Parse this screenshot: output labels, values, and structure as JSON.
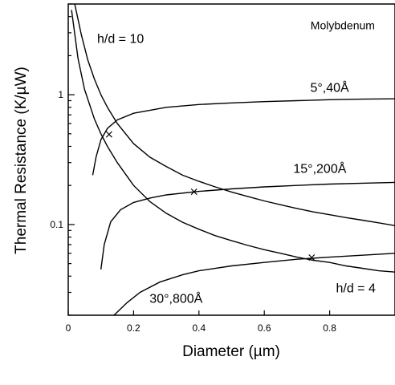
{
  "chart_data": {
    "type": "line",
    "title": "",
    "xlabel": "Diameter (µm)",
    "ylabel": "Thermal Resistance (K/µW)",
    "xlim": [
      0,
      1.0
    ],
    "ylim": [
      0.02,
      5
    ],
    "yscale": "log",
    "grid": false,
    "x_ticks": [
      {
        "value": 0,
        "label": "0"
      },
      {
        "value": 0.2,
        "label": "0.2"
      },
      {
        "value": 0.4,
        "label": "0.4"
      },
      {
        "value": 0.6,
        "label": "0.6"
      },
      {
        "value": 0.8,
        "label": "0.8"
      }
    ],
    "y_ticks": [
      {
        "value": 0.1,
        "label": "0.1"
      },
      {
        "value": 1,
        "label": "1"
      }
    ],
    "annotations": [
      {
        "text": "Molybdenum",
        "x": 0.84,
        "y": 3.2,
        "size": 14
      },
      {
        "text": "h/d = 10",
        "x": 0.16,
        "y": 2.5,
        "size": 16
      },
      {
        "text": "h/d = 4",
        "x": 0.88,
        "y": 0.03,
        "size": 16
      },
      {
        "text": "5°,40Å",
        "x": 0.8,
        "y": 1.05,
        "size": 16
      },
      {
        "text": "15°,200Å",
        "x": 0.77,
        "y": 0.25,
        "size": 16
      },
      {
        "text": "30°,800Å",
        "x": 0.33,
        "y": 0.025,
        "size": 16
      }
    ],
    "series": [
      {
        "x": [
          0.02,
          0.04,
          0.06,
          0.08,
          0.1,
          0.12,
          0.15,
          0.2,
          0.25,
          0.3,
          0.35,
          0.4,
          0.45,
          0.5,
          0.55,
          0.6,
          0.65,
          0.7,
          0.75,
          0.8,
          0.85,
          0.9,
          0.95,
          1.0
        ],
        "values": [
          5.0,
          2.9,
          1.85,
          1.32,
          1.0,
          0.8,
          0.6,
          0.42,
          0.33,
          0.28,
          0.24,
          0.215,
          0.195,
          0.178,
          0.164,
          0.152,
          0.142,
          0.133,
          0.125,
          0.119,
          0.113,
          0.108,
          0.103,
          0.098
        ]
      },
      {
        "x": [
          0.01,
          0.03,
          0.05,
          0.08,
          0.1,
          0.12,
          0.15,
          0.2,
          0.25,
          0.3,
          0.35,
          0.4,
          0.45,
          0.5,
          0.55,
          0.6,
          0.65,
          0.7,
          0.75,
          0.8,
          0.85,
          0.9,
          0.95,
          1.0
        ],
        "values": [
          4.5,
          1.9,
          1.1,
          0.65,
          0.5,
          0.4,
          0.3,
          0.2,
          0.15,
          0.122,
          0.104,
          0.092,
          0.082,
          0.075,
          0.069,
          0.064,
          0.06,
          0.056,
          0.053,
          0.051,
          0.048,
          0.046,
          0.044,
          0.043
        ]
      },
      {
        "x": [
          0.075,
          0.085,
          0.1,
          0.12,
          0.15,
          0.2,
          0.3,
          0.4,
          0.5,
          0.6,
          0.7,
          0.8,
          0.9,
          1.0
        ],
        "values": [
          0.24,
          0.33,
          0.45,
          0.55,
          0.64,
          0.72,
          0.8,
          0.84,
          0.865,
          0.885,
          0.9,
          0.915,
          0.925,
          0.93
        ]
      },
      {
        "x": [
          0.1,
          0.11,
          0.13,
          0.16,
          0.2,
          0.25,
          0.3,
          0.4,
          0.5,
          0.6,
          0.7,
          0.8,
          0.9,
          1.0
        ],
        "values": [
          0.045,
          0.07,
          0.105,
          0.13,
          0.148,
          0.16,
          0.169,
          0.18,
          0.188,
          0.195,
          0.2,
          0.205,
          0.208,
          0.211
        ]
      },
      {
        "x": [
          0.14,
          0.18,
          0.22,
          0.28,
          0.35,
          0.4,
          0.5,
          0.6,
          0.7,
          0.8,
          0.9,
          1.0
        ],
        "values": [
          0.02,
          0.025,
          0.03,
          0.036,
          0.041,
          0.044,
          0.048,
          0.051,
          0.054,
          0.056,
          0.058,
          0.06
        ]
      }
    ],
    "markers": [
      {
        "symbol": "×",
        "x": 0.125,
        "y": 0.5
      },
      {
        "symbol": "×",
        "x": 0.385,
        "y": 0.18
      },
      {
        "symbol": "×",
        "x": 0.745,
        "y": 0.056
      }
    ]
  }
}
